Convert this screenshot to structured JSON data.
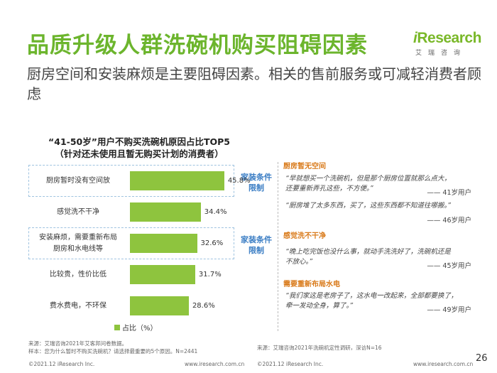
{
  "header": {
    "title": "品质升级人群洗碗机购买阻碍因素",
    "subtitle": "厨房空间和安装麻烦是主要阻碍因素。相关的售前服务或可减轻消费者顾虑"
  },
  "logo": {
    "i": "i",
    "research": "Research",
    "sub": "艾瑞咨询"
  },
  "chart_data": {
    "type": "bar",
    "orientation": "horizontal",
    "title": "“41-50岁”用户不购买洗碗机原因占比TOP5",
    "subtitle": "（针对还未使用且暂无购买计划的消费者）",
    "categories": [
      "厨房暂时没有空间放",
      "感觉洗不干净",
      "安装麻烦，需要重新布局厨房和水电线等",
      "比较贵，性价比低",
      "费水费电，不环保"
    ],
    "category_lines": [
      [
        "厨房暂时没有空间放"
      ],
      [
        "感觉洗不干净"
      ],
      [
        "安装麻烦，需要重新布局",
        "厨房和水电线等"
      ],
      [
        "比较贵，性价比低"
      ],
      [
        "费水费电，不环保"
      ]
    ],
    "values": [
      45.8,
      34.4,
      32.6,
      31.7,
      28.6
    ],
    "value_labels": [
      "45.8%",
      "34.4%",
      "32.6%",
      "31.7%",
      "28.6%"
    ],
    "series": [
      {
        "name": "占比（%）",
        "values": [
          45.8,
          34.4,
          32.6,
          31.7,
          28.6
        ]
      }
    ],
    "xlim": [
      0,
      50
    ],
    "grid": false,
    "legend_position": "bottom",
    "bar_color": "#8ec43e",
    "annotations": [
      {
        "text": [
          "家装条件",
          "限制"
        ],
        "category_index": 0,
        "color": "#3a7dc4"
      },
      {
        "text": [
          "家装条件",
          "限制"
        ],
        "category_index": 2,
        "color": "#3a7dc4"
      }
    ]
  },
  "quotes": [
    {
      "heading": "厨房暂无空间",
      "lines": [
        "“早就想买一个洗碗机，但是那个厨房位置就那么点大，",
        "还要重新弄孔这些，不方便。”"
      ],
      "by": "—— 41岁用户"
    },
    {
      "heading": "",
      "lines": [
        "“厨房堆了太多东西，买了，这些东西都不知道往哪搬。”"
      ],
      "by": "—— 46岁用户"
    },
    {
      "heading": "感觉洗不干净",
      "lines": [
        "“晚上吃完饭也没什么事，就动手洗洗好了，洗碗机还是",
        "不放心。”"
      ],
      "by": "—— 45岁用户"
    },
    {
      "heading": "需要重新布局水电",
      "lines": [
        "“我们家这是老房子了，这水电一改起来，全部都要换了，",
        "牵一发动全身，算了。”"
      ],
      "by": "—— 49岁用户"
    }
  ],
  "sources": {
    "left": [
      "来源：艾瑞咨询2021年艾客邦问卷数据。",
      "样本：您为什么暂时不购买洗碗机？请选择最重要的5个原因。N=2441"
    ],
    "right": "来源：艾瑞咨询2021年洗碗机定性调研，深访N=16"
  },
  "footer": {
    "copyright": "©2021.12 iResearch Inc.",
    "site": "www.iresearch.com.cn",
    "page": "26"
  },
  "colors": {
    "title": "#6cb52d",
    "bar": "#8ec43e",
    "tag": "#3a7dc4",
    "quote_heading": "#d97a1a"
  }
}
